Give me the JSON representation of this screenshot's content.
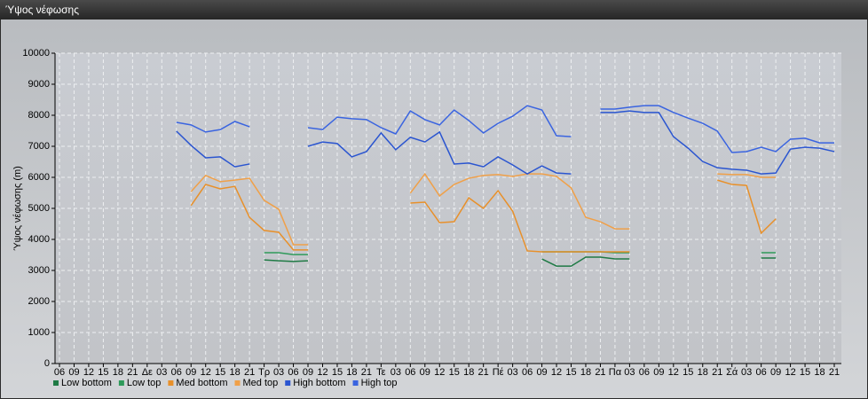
{
  "chart_data": {
    "type": "line",
    "title": "Ύψος νέφωσης",
    "y_label": "Ύψος νέφωσης (m)",
    "categories": [
      "06",
      "09",
      "12",
      "15",
      "18",
      "21",
      "Δε",
      "03",
      "06",
      "09",
      "12",
      "15",
      "18",
      "21",
      "Τρ",
      "03",
      "06",
      "09",
      "12",
      "15",
      "18",
      "21",
      "Τε",
      "03",
      "06",
      "09",
      "12",
      "15",
      "18",
      "21",
      "Πέ",
      "03",
      "06",
      "09",
      "12",
      "15",
      "18",
      "21",
      "Πα",
      "03",
      "06",
      "09",
      "12",
      "15",
      "18",
      "21",
      "Σά",
      "03",
      "06",
      "09",
      "12",
      "15",
      "18",
      "21"
    ],
    "ylim": [
      0,
      10000
    ],
    "yticks": [
      0,
      1000,
      2000,
      3000,
      4000,
      5000,
      6000,
      7000,
      8000,
      9000,
      10000
    ],
    "grid": true,
    "legend": "bottom-left",
    "series": [
      {
        "name": "Low bottom",
        "color": "#1f7a45",
        "values": [
          null,
          null,
          null,
          null,
          null,
          null,
          null,
          null,
          null,
          null,
          null,
          null,
          null,
          null,
          3340,
          3310,
          3290,
          3310,
          null,
          null,
          null,
          null,
          null,
          null,
          null,
          null,
          null,
          null,
          null,
          null,
          null,
          null,
          null,
          3370,
          3140,
          3140,
          3430,
          3430,
          3370,
          3370,
          null,
          null,
          null,
          null,
          null,
          null,
          null,
          null,
          3400,
          3400,
          null,
          null,
          null,
          null
        ]
      },
      {
        "name": "Low top",
        "color": "#2e9a5a",
        "values": [
          null,
          null,
          null,
          null,
          null,
          null,
          null,
          null,
          null,
          null,
          null,
          null,
          null,
          null,
          3570,
          3570,
          3510,
          3510,
          null,
          null,
          null,
          null,
          null,
          null,
          null,
          null,
          null,
          null,
          null,
          null,
          null,
          null,
          null,
          3600,
          3600,
          3600,
          3600,
          3600,
          3570,
          3570,
          null,
          null,
          null,
          null,
          null,
          null,
          null,
          null,
          3570,
          3570,
          null,
          null,
          null,
          null
        ]
      },
      {
        "name": "Med bottom",
        "color": "#e8902a",
        "values": [
          null,
          null,
          null,
          null,
          null,
          null,
          null,
          null,
          null,
          5090,
          5770,
          5630,
          5710,
          4710,
          4290,
          4230,
          3660,
          3660,
          null,
          null,
          null,
          null,
          null,
          null,
          5170,
          5200,
          4540,
          4570,
          5340,
          5000,
          5570,
          4910,
          3630,
          3600,
          3600,
          3600,
          3600,
          3600,
          3600,
          3600,
          null,
          null,
          null,
          null,
          null,
          5910,
          5770,
          5740,
          4200,
          4660,
          null,
          null,
          null,
          null
        ]
      },
      {
        "name": "Med top",
        "color": "#f0a048",
        "values": [
          null,
          null,
          null,
          null,
          null,
          null,
          null,
          null,
          null,
          5540,
          6060,
          5860,
          5910,
          5970,
          5260,
          4970,
          3830,
          3830,
          null,
          null,
          null,
          null,
          null,
          null,
          5490,
          6110,
          5400,
          5770,
          5970,
          6060,
          6090,
          6030,
          6110,
          6110,
          6030,
          5660,
          4710,
          4570,
          4340,
          4340,
          null,
          null,
          null,
          null,
          null,
          6110,
          6090,
          6090,
          6000,
          6000,
          null,
          null,
          null,
          null
        ]
      },
      {
        "name": "High bottom",
        "color": "#2a55d0",
        "values": [
          null,
          null,
          null,
          null,
          null,
          null,
          null,
          null,
          7490,
          7030,
          6630,
          6660,
          6340,
          6430,
          null,
          null,
          null,
          7000,
          7140,
          7090,
          6660,
          6830,
          7430,
          6890,
          7290,
          7140,
          7460,
          6430,
          6460,
          6340,
          6660,
          6400,
          6110,
          6370,
          6140,
          6110,
          null,
          8090,
          8090,
          8140,
          8090,
          8090,
          7310,
          6940,
          6510,
          6310,
          6260,
          6230,
          6110,
          6140,
          6910,
          6970,
          6940,
          6830
        ]
      },
      {
        "name": "High top",
        "color": "#3a64e0",
        "values": [
          null,
          null,
          null,
          null,
          null,
          null,
          null,
          null,
          7770,
          7690,
          7460,
          7540,
          7800,
          7630,
          null,
          null,
          null,
          7600,
          7540,
          7940,
          7890,
          7860,
          7600,
          7400,
          8140,
          7860,
          7690,
          8170,
          7830,
          7430,
          7740,
          7970,
          8310,
          8170,
          7340,
          7310,
          null,
          8200,
          8200,
          8260,
          8310,
          8310,
          8090,
          7910,
          7740,
          7490,
          6800,
          6830,
          6970,
          6830,
          7230,
          7260,
          7110,
          7110
        ]
      }
    ]
  }
}
